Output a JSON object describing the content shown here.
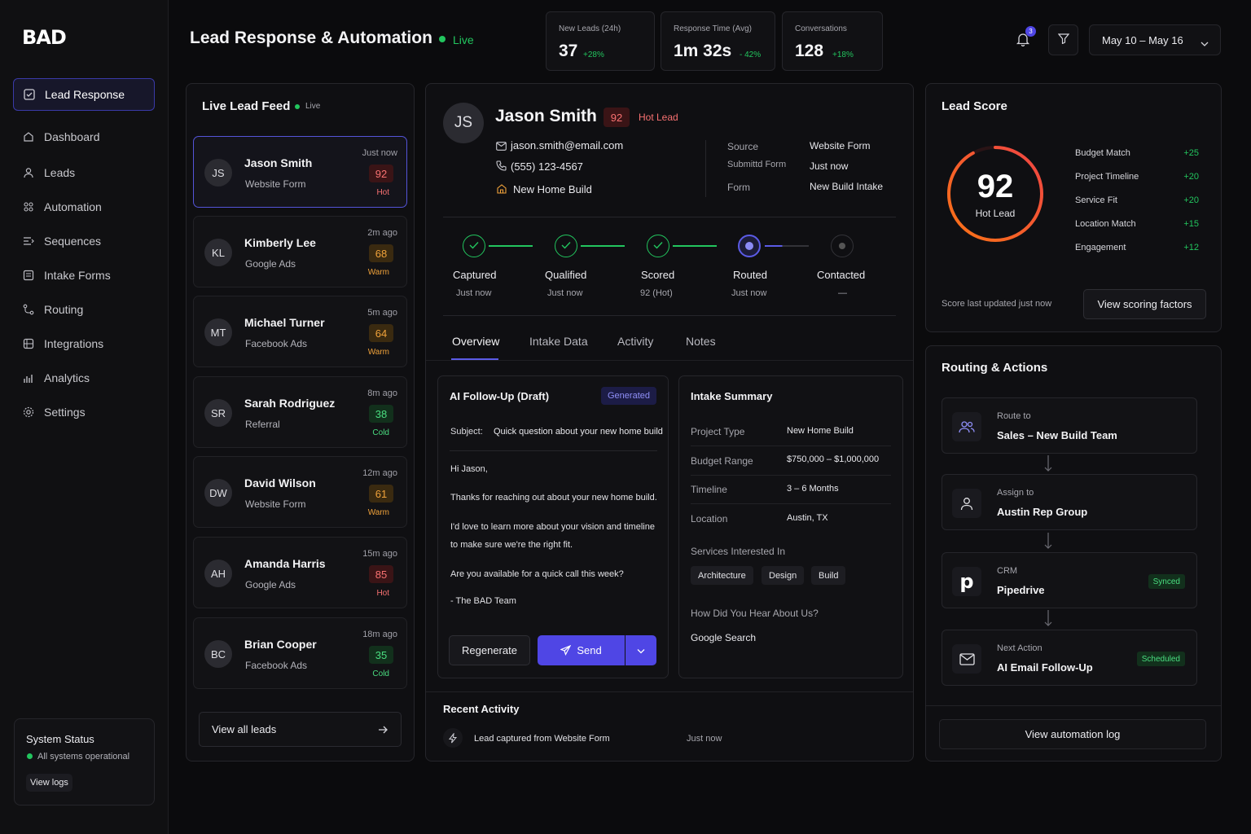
{
  "app": {
    "logo": "BAD"
  },
  "sidebar": {
    "items": [
      {
        "label": "Lead Response",
        "icon": "check-square-icon"
      },
      {
        "label": "Dashboard",
        "icon": "home-icon"
      },
      {
        "label": "Leads",
        "icon": "user-icon"
      },
      {
        "label": "Automation",
        "icon": "automation-icon"
      },
      {
        "label": "Sequences",
        "icon": "sequences-icon"
      },
      {
        "label": "Intake Forms",
        "icon": "form-icon"
      },
      {
        "label": "Routing",
        "icon": "routing-icon"
      },
      {
        "label": "Integrations",
        "icon": "integrations-icon"
      },
      {
        "label": "Analytics",
        "icon": "analytics-icon"
      },
      {
        "label": "Settings",
        "icon": "gear-icon"
      }
    ],
    "system_status": {
      "title": "System Status",
      "status": "All systems operational",
      "button": "View logs"
    }
  },
  "header": {
    "title": "Lead Response & Automation",
    "live": "Live",
    "stats": [
      {
        "label": "New Leads (24h)",
        "value": "37",
        "change": "+28%"
      },
      {
        "label": "Response Time (Avg)",
        "value": "1m 32s",
        "change": "- 42%"
      },
      {
        "label": "Conversations",
        "value": "128",
        "change": "+18%"
      }
    ],
    "notifications_count": "3",
    "date_range": "May 10 – May 16"
  },
  "feed": {
    "title": "Live Lead Feed",
    "live": "Live",
    "leads": [
      {
        "initials": "JS",
        "name": "Jason Smith",
        "source": "Website Form",
        "time": "Just now",
        "score": "92",
        "temp": "Hot"
      },
      {
        "initials": "KL",
        "name": "Kimberly Lee",
        "source": "Google Ads",
        "time": "2m ago",
        "score": "68",
        "temp": "Warm"
      },
      {
        "initials": "MT",
        "name": "Michael Turner",
        "source": "Facebook Ads",
        "time": "5m ago",
        "score": "64",
        "temp": "Warm"
      },
      {
        "initials": "SR",
        "name": "Sarah Rodriguez",
        "source": "Referral",
        "time": "8m ago",
        "score": "38",
        "temp": "Cold"
      },
      {
        "initials": "DW",
        "name": "David Wilson",
        "source": "Website Form",
        "time": "12m ago",
        "score": "61",
        "temp": "Warm"
      },
      {
        "initials": "AH",
        "name": "Amanda Harris",
        "source": "Google Ads",
        "time": "15m ago",
        "score": "85",
        "temp": "Hot"
      },
      {
        "initials": "BC",
        "name": "Brian Cooper",
        "source": "Facebook Ads",
        "time": "18m ago",
        "score": "35",
        "temp": "Cold"
      }
    ],
    "view_all": "View all leads"
  },
  "detail": {
    "initials": "JS",
    "name": "Jason Smith",
    "score": "92",
    "badge": "Hot Lead",
    "email": "jason.smith@email.com",
    "phone": "(555) 123-4567",
    "project": "New Home Build",
    "meta": [
      {
        "label": "Source",
        "value": "Website Form"
      },
      {
        "label": "Submittd Form",
        "value": "Just now"
      },
      {
        "label": "Form",
        "value": "New Build Intake"
      }
    ],
    "steps": [
      {
        "label": "Captured",
        "sub": "Just now"
      },
      {
        "label": "Qualified",
        "sub": "Just now"
      },
      {
        "label": "Scored",
        "sub": "92 (Hot)"
      },
      {
        "label": "Routed",
        "sub": "Just now"
      },
      {
        "label": "Contacted",
        "sub": "—"
      }
    ],
    "tabs": [
      "Overview",
      "Intake Data",
      "Activity",
      "Notes"
    ],
    "followup": {
      "title": "AI Follow-Up (Draft)",
      "badge": "Generated",
      "subject_label": "Subject:",
      "subject": "Quick question about your new home build",
      "greeting": "Hi Jason,",
      "p1": "Thanks for reaching out about your new home build.",
      "p2a": "I'd love to learn more about your vision and timeline",
      "p2b": "to make sure we're the right fit.",
      "p3": "Are you available for a quick call this week?",
      "sign": "- The BAD Team",
      "regenerate": "Regenerate",
      "send": "Send"
    },
    "intake": {
      "title": "Intake Summary",
      "rows": [
        {
          "label": "Project Type",
          "value": "New Home Build"
        },
        {
          "label": "Budget Range",
          "value": "$750,000 – $1,000,000"
        },
        {
          "label": "Timeline",
          "value": "3 – 6 Months"
        },
        {
          "label": "Location",
          "value": "Austin, TX"
        }
      ],
      "services_label": "Services Interested In",
      "services": [
        "Architecture",
        "Design",
        "Build"
      ],
      "hear_label": "How Did You Hear About Us?",
      "hear_value": "Google Search"
    },
    "activity": {
      "title": "Recent Activity",
      "text": "Lead captured from Website Form",
      "time": "Just now"
    }
  },
  "score_panel": {
    "title": "Lead Score",
    "score": "92",
    "fraction": 0.92,
    "label": "Hot Lead",
    "factors": [
      {
        "label": "Budget Match",
        "points": "+25"
      },
      {
        "label": "Project Timeline",
        "points": "+20"
      },
      {
        "label": "Service Fit",
        "points": "+20"
      },
      {
        "label": "Location Match",
        "points": "+15"
      },
      {
        "label": "Engagement",
        "points": "+12"
      }
    ],
    "updated": "Score last updated just now",
    "button": "View scoring factors"
  },
  "routing": {
    "title": "Routing & Actions",
    "cards": [
      {
        "label": "Route to",
        "value": "Sales – New Build Team",
        "icon": "users-icon",
        "badge": ""
      },
      {
        "label": "Assign to",
        "value": "Austin Rep Group",
        "icon": "user-icon",
        "badge": ""
      },
      {
        "label": "CRM",
        "value": "Pipedrive",
        "icon": "pipedrive-icon",
        "badge": "Synced"
      },
      {
        "label": "Next Action",
        "value": "AI Email Follow-Up",
        "icon": "mail-icon",
        "badge": "Scheduled"
      }
    ],
    "button": "View automation log"
  },
  "colors": {
    "accent": "#4f46e5",
    "green": "#22c55e",
    "red": "#ef4444",
    "amber": "#f0a23a"
  }
}
